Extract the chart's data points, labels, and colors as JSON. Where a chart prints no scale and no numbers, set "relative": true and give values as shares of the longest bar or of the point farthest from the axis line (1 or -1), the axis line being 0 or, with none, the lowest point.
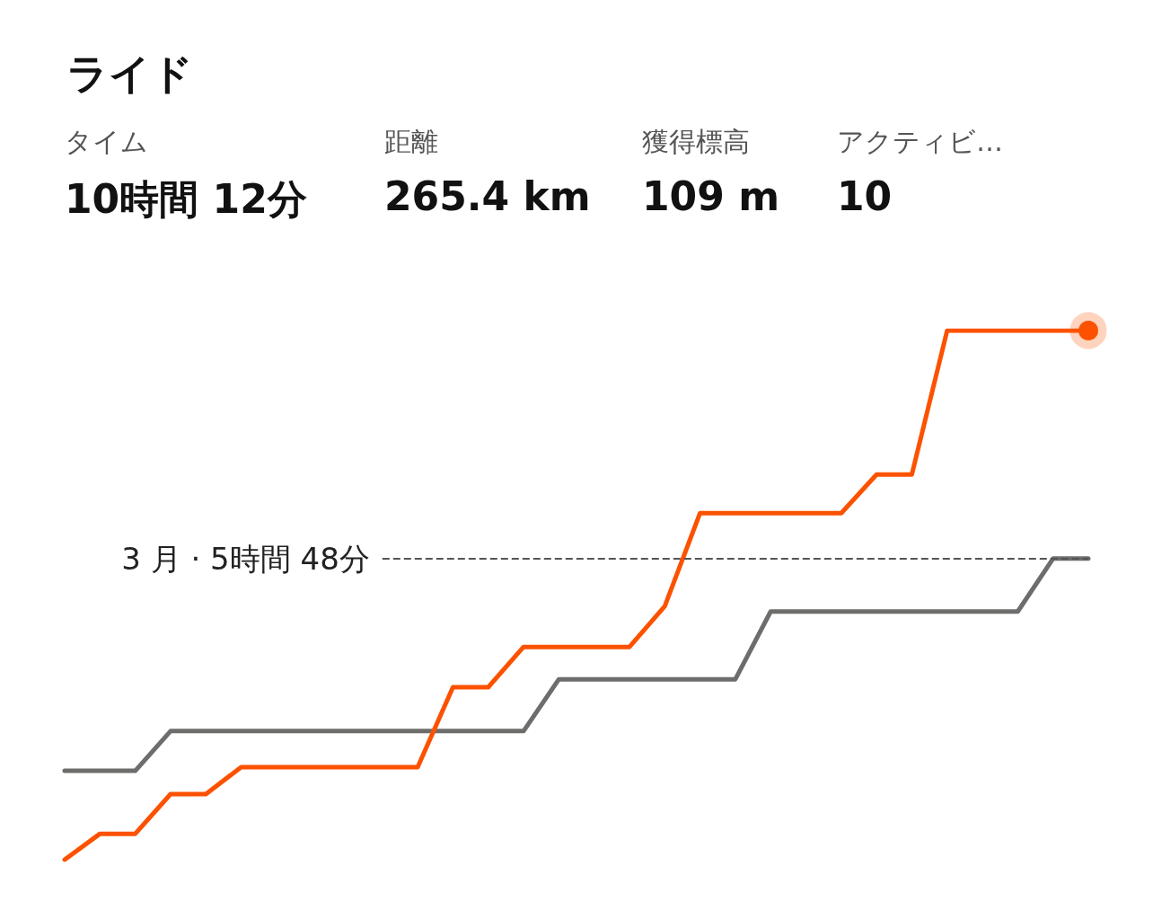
{
  "chart_data": {
    "type": "line",
    "title": "ライド",
    "relative": true,
    "marker": "none",
    "line_style": "solid",
    "annotations": [
      "タイム",
      "10時間 12分",
      "距離",
      "265.4 km",
      "獲得標高",
      "109 m",
      "アクティビ…",
      "10"
    ],
    "categories": [
      null,
      null,
      null,
      null,
      null,
      null,
      null,
      null,
      null,
      null,
      null,
      null,
      null,
      null,
      null,
      null,
      null,
      null,
      null,
      null,
      null,
      null,
      null,
      null,
      null,
      null,
      null,
      null,
      null,
      null
    ],
    "series": [
      {
        "color": "#6d6d6b",
        "values": [
          0.168,
          0.168,
          0.168,
          0.243,
          0.243,
          0.243,
          0.243,
          0.243,
          0.243,
          0.243,
          0.243,
          0.243,
          0.243,
          0.243,
          0.341,
          0.341,
          0.341,
          0.341,
          0.341,
          0.341,
          0.469,
          0.469,
          0.469,
          0.469,
          0.469,
          0.469,
          0.469,
          0.469,
          0.569,
          0.569
        ]
      },
      {
        "color": "#fc5200",
        "values": [
          0,
          0.049,
          0.049,
          0.124,
          0.124,
          0.175,
          0.175,
          0.175,
          0.175,
          0.175,
          0.175,
          0.326,
          0.326,
          0.402,
          0.402,
          0.402,
          0.402,
          0.479,
          0.655,
          0.655,
          0.655,
          0.655,
          0.655,
          0.728,
          0.728,
          1,
          1,
          1,
          1,
          1
        ]
      }
    ],
    "ref_lines": [
      {
        "axis": "y",
        "value": 0.569,
        "label": "3 月 · 5時間 48分",
        "color": "#555555",
        "line_style": "dashed"
      }
    ]
  }
}
